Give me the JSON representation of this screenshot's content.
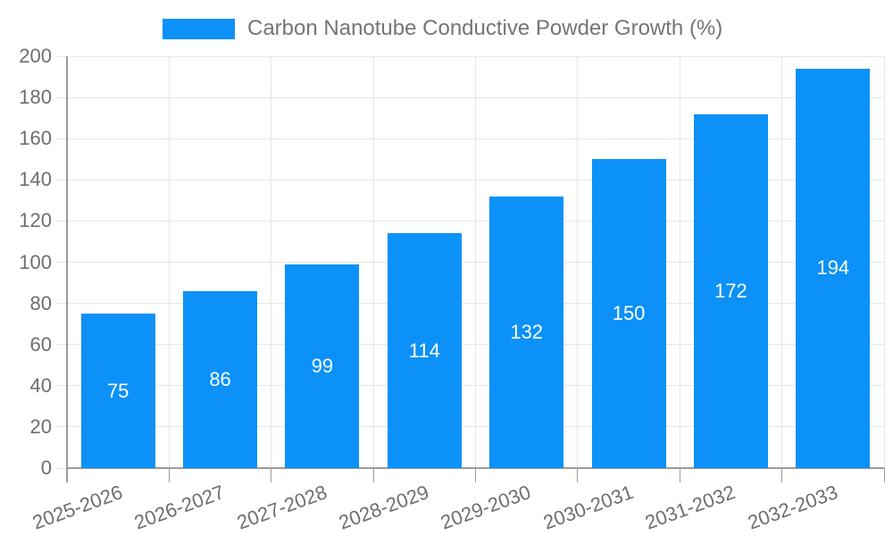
{
  "chart_data": {
    "type": "bar",
    "title": "Carbon Nanotube Conductive Powder Growth (%)",
    "categories": [
      "2025-2026",
      "2026-2027",
      "2027-2028",
      "2028-2029",
      "2029-2030",
      "2030-2031",
      "2031-2032",
      "2032-2033"
    ],
    "values": [
      75,
      86,
      99,
      114,
      132,
      150,
      172,
      194
    ],
    "xlabel": "",
    "ylabel": "",
    "ylim": [
      0,
      200
    ],
    "ytick_step": 20,
    "y_tick_labels": [
      "0",
      "20",
      "40",
      "60",
      "80",
      "100",
      "120",
      "140",
      "160",
      "180",
      "200"
    ],
    "grid": true,
    "value_labels": "centered-inside-bars",
    "legend_position": "top-center",
    "colors": {
      "bar": "#0b91f7",
      "grid": "#e6e6e6",
      "axis": "#9b9b9b",
      "tick_text": "#6e6e6e",
      "legend_text": "#757575",
      "value_label": "#ffffff"
    }
  }
}
